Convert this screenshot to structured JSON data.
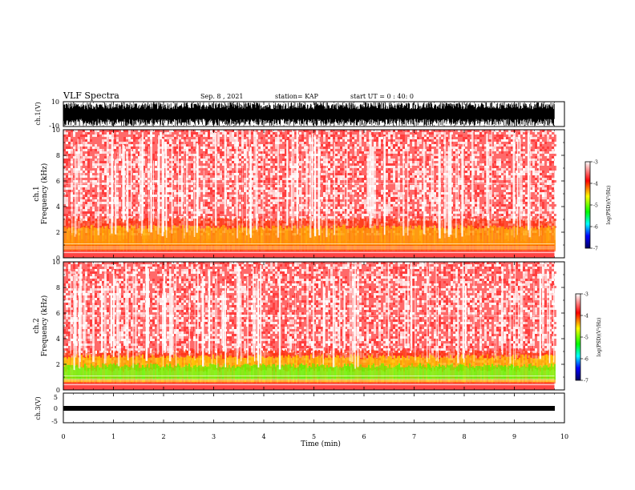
{
  "header": {
    "title": "VLF Spectra",
    "date": "Sep. 8 , 2021",
    "station": "station= KAP",
    "start": "start UT = 0 : 40: 0"
  },
  "panels": {
    "ch1_wave": {
      "ylabel": "ch.1(V)",
      "ticks": [
        "10",
        "-10"
      ]
    },
    "ch1_spec": {
      "ylabel_top": "ch.1",
      "ylabel_bottom": "Frequency (kHz)",
      "ticks": [
        "0",
        "2",
        "4",
        "6",
        "8",
        "10"
      ]
    },
    "ch2_spec": {
      "ylabel_top": "ch.2",
      "ylabel_bottom": "Frequency (kHz)",
      "ticks": [
        "0",
        "2",
        "4",
        "6",
        "8",
        "10"
      ]
    },
    "ch3_wave": {
      "ylabel": "ch.3(V)",
      "ticks": [
        "5",
        "0",
        "-5"
      ]
    }
  },
  "colorbar": {
    "label": "log(PSD)(V²/Hz)",
    "ticks": [
      "-3",
      "-4",
      "-5",
      "-6",
      "-7"
    ],
    "colors": [
      "#ffffff",
      "#ff0000",
      "#ffff00",
      "#00ff00",
      "#00ffff",
      "#0000ff",
      "#000080"
    ]
  },
  "xaxis": {
    "label": "Time (min)",
    "ticks": [
      "0",
      "1",
      "2",
      "3",
      "4",
      "5",
      "6",
      "7",
      "8",
      "9",
      "10"
    ]
  },
  "chart_data": {
    "type": "heatmap",
    "title": "VLF Spectra",
    "xlabel": "Time (min)",
    "xlim": [
      0,
      10
    ],
    "data_end_min": 9.8,
    "panels": [
      {
        "name": "ch.1(V)",
        "type": "line",
        "ylim": [
          -10,
          10
        ],
        "amplitude_approx": "saturated ±10"
      },
      {
        "name": "ch.1",
        "type": "heatmap",
        "ylabel": "Frequency (kHz)",
        "ylim": [
          0,
          10
        ],
        "zlim": [
          -7,
          -3
        ],
        "bands_khz": [
          {
            "range": [
              0.5,
              1.2
            ],
            "level": "high"
          },
          {
            "range": [
              1.2,
              2.5
            ],
            "level": "yellow-orange"
          },
          {
            "range": [
              2.5,
              10
            ],
            "level": "red-white"
          }
        ]
      },
      {
        "name": "ch.2",
        "type": "heatmap",
        "ylabel": "Frequency (kHz)",
        "ylim": [
          0,
          10
        ],
        "zlim": [
          -7,
          -3
        ],
        "bands_khz": [
          {
            "range": [
              0.7,
              1.8
            ],
            "level": "green"
          },
          {
            "range": [
              1.8,
              2.8
            ],
            "level": "yellow"
          },
          {
            "range": [
              2.8,
              10
            ],
            "level": "red-white"
          }
        ]
      },
      {
        "name": "ch.3(V)",
        "type": "line",
        "ylim": [
          -5,
          5
        ],
        "value_approx": -0.5
      }
    ]
  }
}
